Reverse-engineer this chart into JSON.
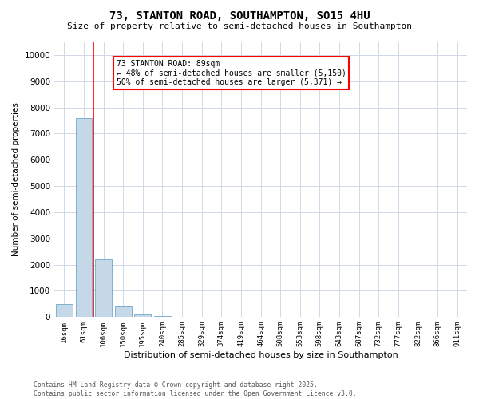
{
  "title_line1": "73, STANTON ROAD, SOUTHAMPTON, SO15 4HU",
  "title_line2": "Size of property relative to semi-detached houses in Southampton",
  "xlabel": "Distribution of semi-detached houses by size in Southampton",
  "ylabel": "Number of semi-detached properties",
  "annotation_line1": "73 STANTON ROAD: 89sqm",
  "annotation_line2": "← 48% of semi-detached houses are smaller (5,150)",
  "annotation_line3": "50% of semi-detached houses are larger (5,371) →",
  "categories": [
    "16sqm",
    "61sqm",
    "106sqm",
    "150sqm",
    "195sqm",
    "240sqm",
    "285sqm",
    "329sqm",
    "374sqm",
    "419sqm",
    "464sqm",
    "508sqm",
    "553sqm",
    "598sqm",
    "643sqm",
    "687sqm",
    "732sqm",
    "777sqm",
    "822sqm",
    "866sqm",
    "911sqm"
  ],
  "values": [
    500,
    7600,
    2200,
    400,
    100,
    50,
    10,
    5,
    2,
    1,
    1,
    0,
    0,
    0,
    0,
    0,
    0,
    0,
    0,
    0,
    0
  ],
  "bar_color": "#c5d8e8",
  "bar_edge_color": "#5a9abf",
  "red_line_x": 1.5,
  "ylim": [
    0,
    10500
  ],
  "yticks": [
    0,
    1000,
    2000,
    3000,
    4000,
    5000,
    6000,
    7000,
    8000,
    9000,
    10000
  ],
  "background_color": "#ffffff",
  "grid_color": "#d0d8e8",
  "title_fontsize": 10,
  "subtitle_fontsize": 8,
  "footer_line1": "Contains HM Land Registry data © Crown copyright and database right 2025.",
  "footer_line2": "Contains public sector information licensed under the Open Government Licence v3.0."
}
